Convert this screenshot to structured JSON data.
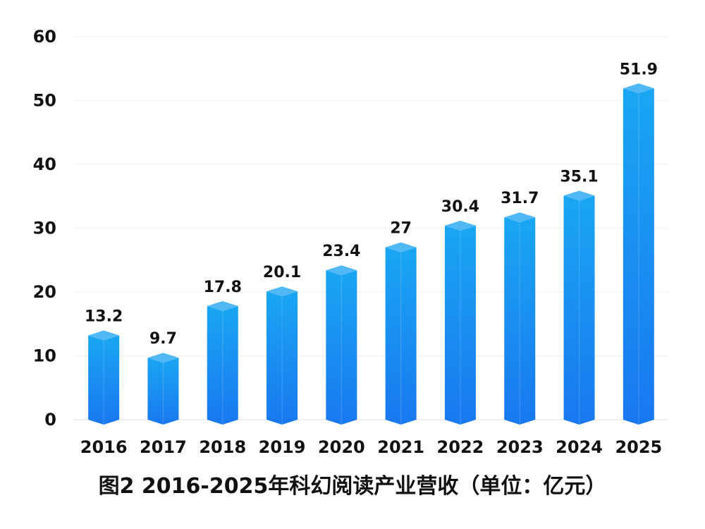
{
  "chart_data": {
    "type": "bar",
    "title": "图2 2016-2025年科幻阅读产业营收（单位：亿元）",
    "xlabel": "",
    "ylabel": "",
    "categories": [
      "2016",
      "2017",
      "2018",
      "2019",
      "2020",
      "2021",
      "2022",
      "2023",
      "2024",
      "2025"
    ],
    "values": [
      13.2,
      9.7,
      17.8,
      20.1,
      23.4,
      27,
      30.4,
      31.7,
      35.1,
      51.9
    ],
    "value_labels": [
      "13.2",
      "9.7",
      "17.8",
      "20.1",
      "23.4",
      "27",
      "30.4",
      "31.7",
      "35.1",
      "51.9"
    ],
    "ylim": [
      0,
      60
    ],
    "yticks": [
      0,
      10,
      20,
      30,
      40,
      50,
      60
    ],
    "grid": true,
    "colors": {
      "bar_top": "#1aa6f2",
      "bar_bottom": "#1978f0",
      "cap": "#4fb8f5"
    }
  }
}
